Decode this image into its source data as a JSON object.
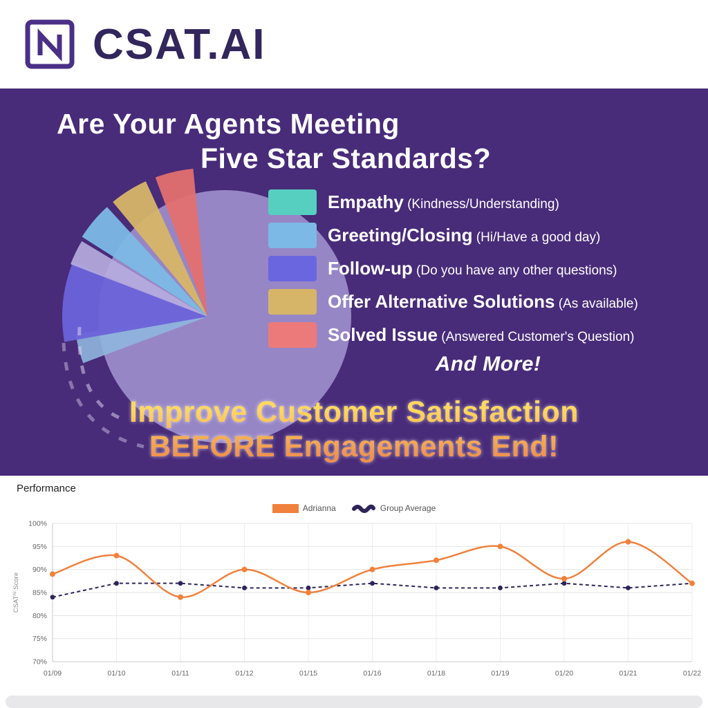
{
  "header": {
    "brand": "CSAT.AI",
    "logo_letter": "N",
    "brand_color": "#32265c",
    "logo_color": "#4b2f86"
  },
  "banner": {
    "title_line1": "Are Your Agents Meeting",
    "title_line2": "Five Star Standards?",
    "legend": [
      {
        "label": "Empathy",
        "detail": "(Kindness/Understanding)",
        "color": "#57cfc0"
      },
      {
        "label": "Greeting/Closing",
        "detail": "(Hi/Have a good day)",
        "color": "#7cb9e6"
      },
      {
        "label": "Follow-up",
        "detail": "(Do you have any other questions)",
        "color": "#6a66e0"
      },
      {
        "label": "Offer Alternative Solutions",
        "detail": "(As available)",
        "color": "#d7b568"
      },
      {
        "label": "Solved Issue",
        "detail": "(Answered Customer's Question)",
        "color": "#ec7a7a"
      }
    ],
    "and_more": "And More!",
    "cta_line1": "Improve Customer Satisfaction",
    "cta_line2": "BEFORE Engagements End!",
    "background_color": "#482b79"
  },
  "performance": {
    "section_title": "Performance"
  },
  "chart_data": {
    "type": "line",
    "x": [
      "01/09",
      "01/10",
      "01/11",
      "01/12",
      "01/15",
      "01/16",
      "01/18",
      "01/19",
      "01/20",
      "01/21",
      "01/22"
    ],
    "series": [
      {
        "name": "Adrianna",
        "color": "#f0813c",
        "style": "solid",
        "values": [
          89,
          93,
          84,
          90,
          85,
          90,
          92,
          95,
          88,
          96,
          87
        ]
      },
      {
        "name": "Group Average",
        "color": "#2e2459",
        "style": "dashed",
        "values": [
          84,
          87,
          87,
          86,
          86,
          87,
          86,
          86,
          87,
          86,
          87
        ]
      }
    ],
    "ylabel_parts": {
      "base": "CSAT",
      "sup": "AI",
      "rest": " Score"
    },
    "yticks": [
      "100%",
      "95%",
      "90%",
      "85%",
      "80%",
      "75%",
      "70%"
    ],
    "ylim": [
      70,
      100
    ],
    "legend_position": "top-center",
    "grid": true
  }
}
